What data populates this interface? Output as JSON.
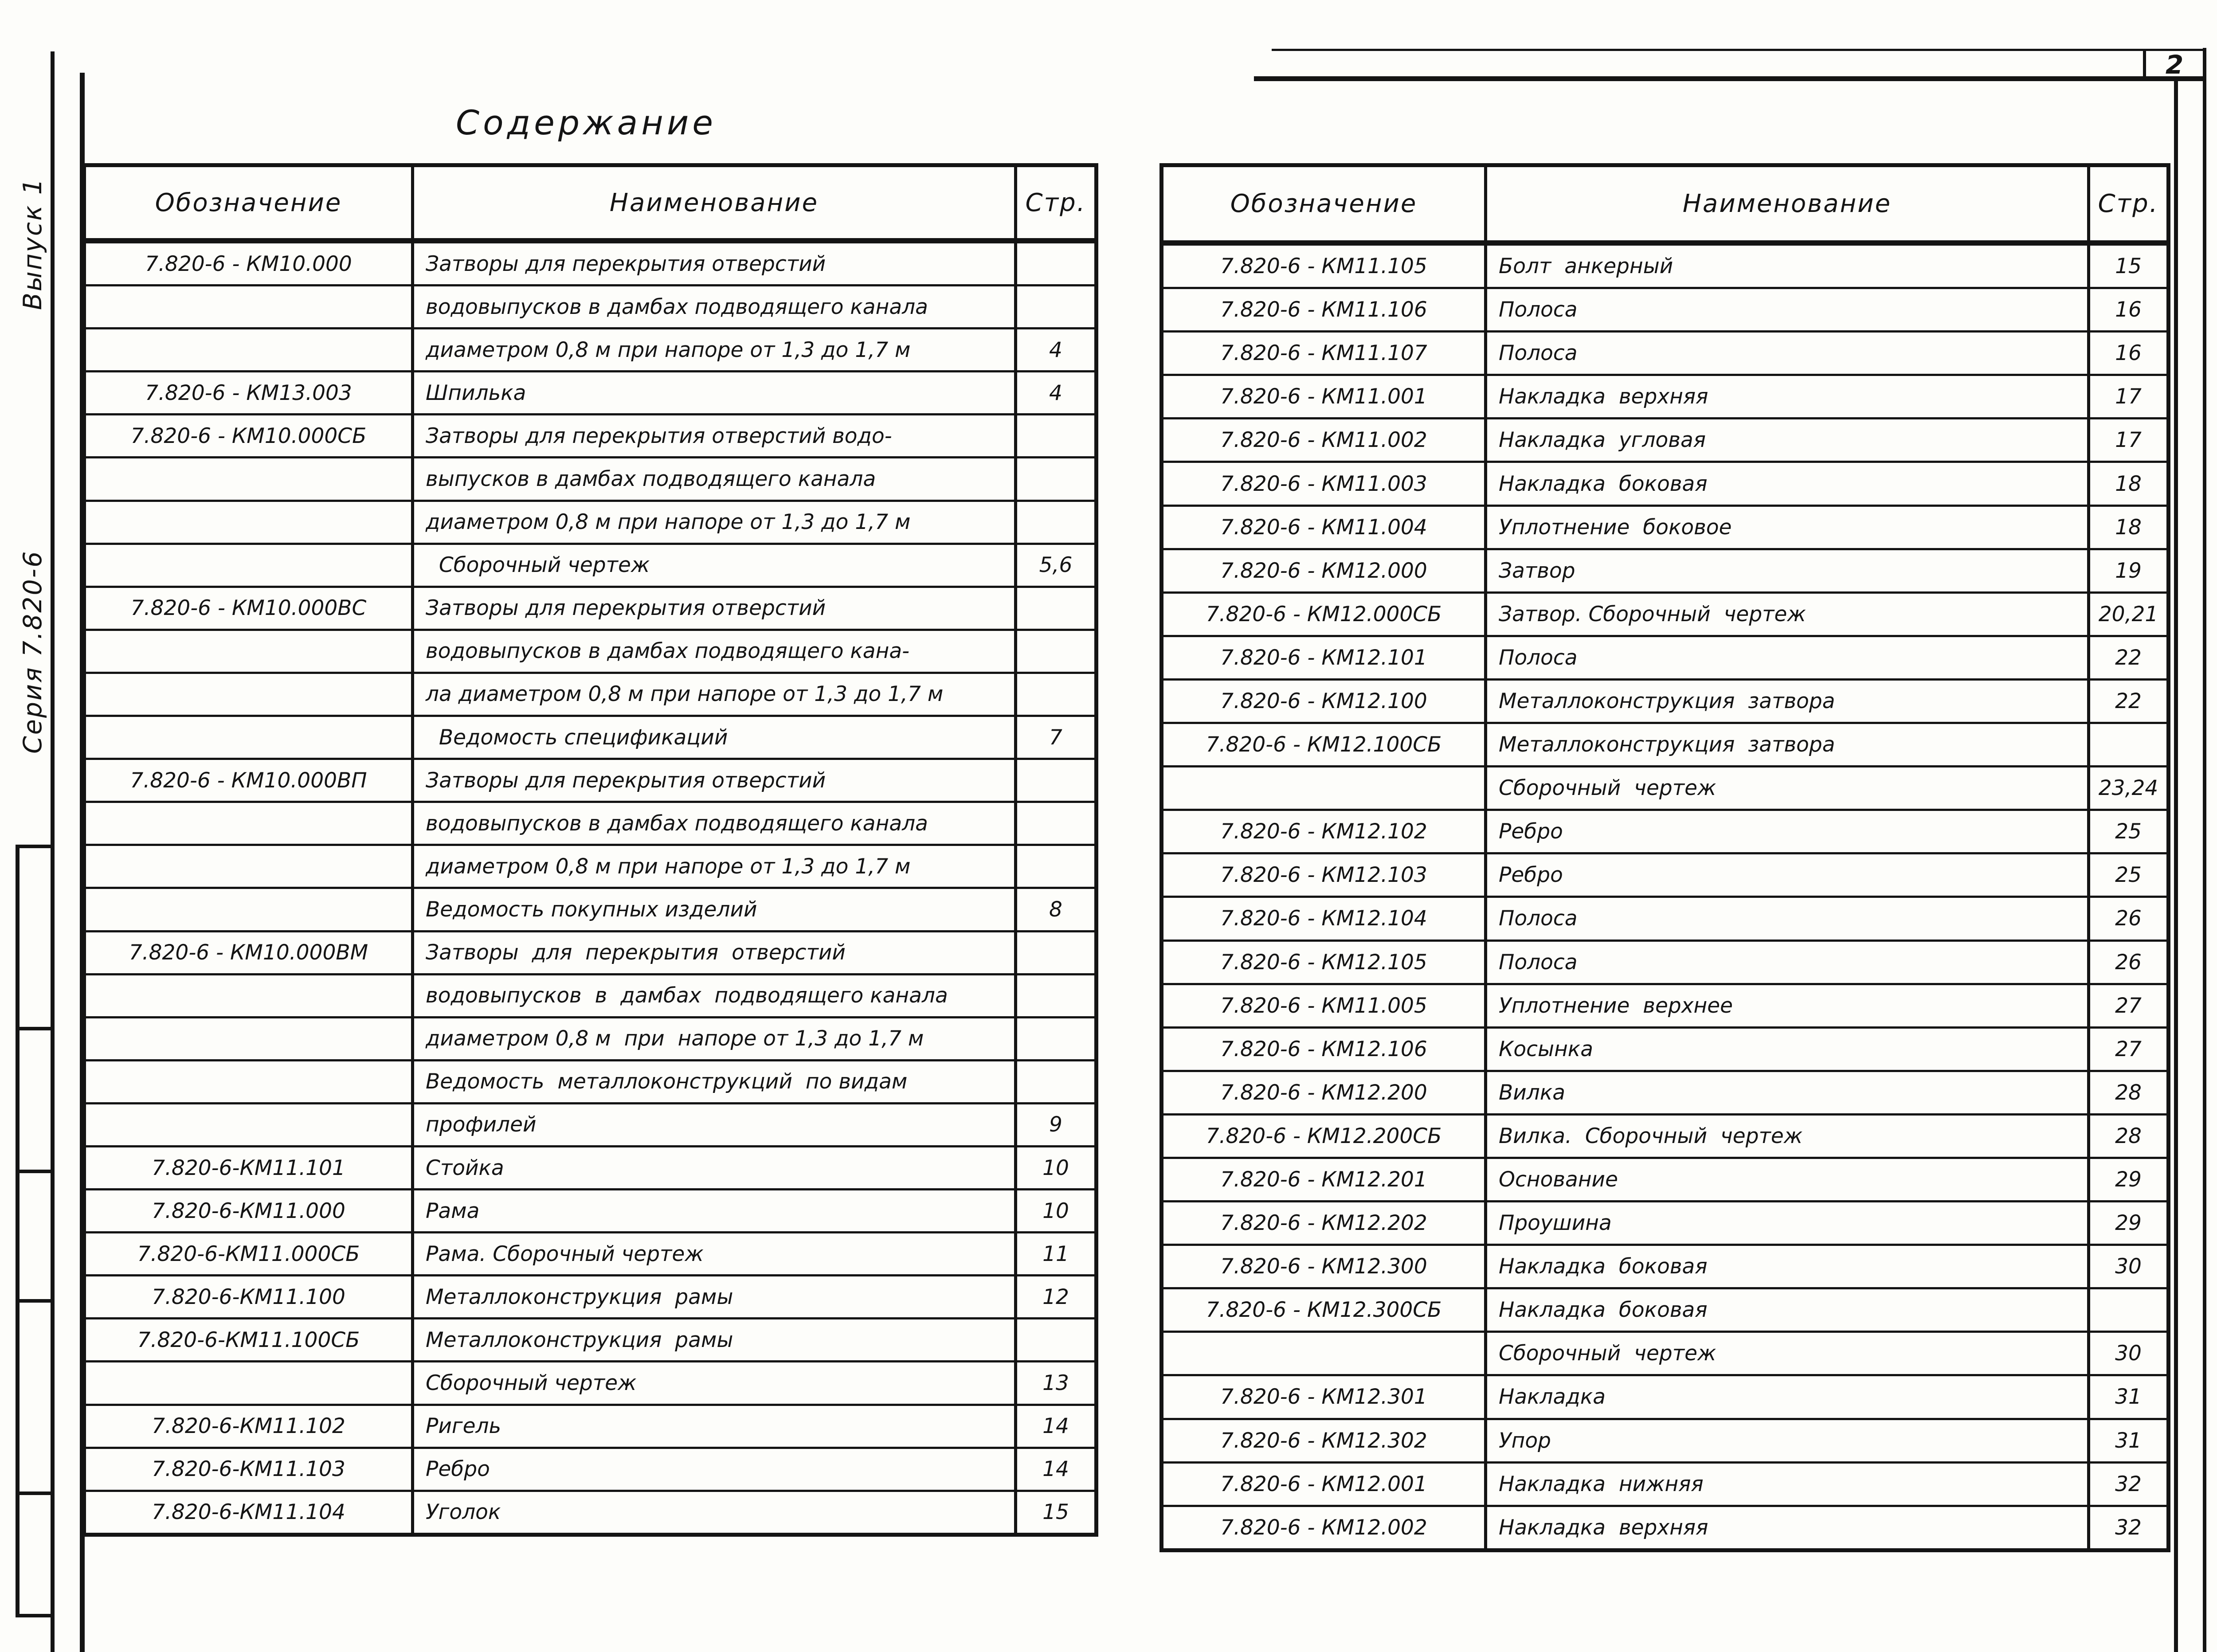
{
  "page_number": "2",
  "sidebar": {
    "series": "Серия 7.820-6",
    "issue": "Выпуск 1"
  },
  "title": "Содержание",
  "headers": {
    "designation": "Обозначение",
    "name": "Наименование",
    "page": "Стр."
  },
  "tables": [
    {
      "name": "left",
      "rows": [
        [
          "7.820-6 - КМ10.000",
          "Затворы для перекрытия отверстий",
          ""
        ],
        [
          "",
          "водовыпусков в дамбах подводящего канала",
          ""
        ],
        [
          "",
          "диаметром 0,8 м при напоре от 1,3 до 1,7 м",
          "4"
        ],
        [
          "7.820-6 - КМ13.003",
          "Шпилька",
          "4"
        ],
        [
          "7.820-6 - КМ10.000СБ",
          "Затворы для перекрытия отверстий водо-",
          ""
        ],
        [
          "",
          "выпусков в дамбах подводящего канала",
          ""
        ],
        [
          "",
          "диаметром 0,8 м при напоре от 1,3 до 1,7 м",
          ""
        ],
        [
          "",
          "  Сборочный чертеж",
          "5,6"
        ],
        [
          "7.820-6 - КМ10.000ВС",
          "Затворы для перекрытия отверстий",
          ""
        ],
        [
          "",
          "водовыпусков в дамбах подводящего кана-",
          ""
        ],
        [
          "",
          "ла диаметром 0,8 м при напоре от 1,3 до 1,7 м",
          ""
        ],
        [
          "",
          "  Ведомость спецификаций",
          "7"
        ],
        [
          "7.820-6 - КМ10.000ВП",
          "Затворы для перекрытия отверстий",
          ""
        ],
        [
          "",
          "водовыпусков в дамбах подводящего канала",
          ""
        ],
        [
          "",
          "диаметром 0,8 м при напоре от 1,3 до 1,7 м",
          ""
        ],
        [
          "",
          "Ведомость покупных изделий",
          "8"
        ],
        [
          "7.820-6 - КМ10.000ВМ",
          "Затворы  для  перекрытия  отверстий",
          ""
        ],
        [
          "",
          "водовыпусков  в  дамбах  подводящего канала",
          ""
        ],
        [
          "",
          "диаметром 0,8 м  при  напоре от 1,3 до 1,7 м",
          ""
        ],
        [
          "",
          "Ведомость  металлоконструкций  по видам",
          ""
        ],
        [
          "",
          "профилей",
          "9"
        ],
        [
          "7.820-6-КМ11.101",
          "Стойка",
          "10"
        ],
        [
          "7.820-6-КМ11.000",
          "Рама",
          "10"
        ],
        [
          "7.820-6-КМ11.000СБ",
          "Рама. Сборочный чертеж",
          "11"
        ],
        [
          "7.820-6-КМ11.100",
          "Металлоконструкция  рамы",
          "12"
        ],
        [
          "7.820-6-КМ11.100СБ",
          "Металлоконструкция  рамы",
          ""
        ],
        [
          "",
          "Сборочный чертеж",
          "13"
        ],
        [
          "7.820-6-КМ11.102",
          "Ригель",
          "14"
        ],
        [
          "7.820-6-КМ11.103",
          "Ребро",
          "14"
        ],
        [
          "7.820-6-КМ11.104",
          "Уголок",
          "15"
        ]
      ]
    },
    {
      "name": "right",
      "rows": [
        [
          "7.820-6 - КМ11.105",
          "Болт  анкерный",
          "15"
        ],
        [
          "7.820-6 - КМ11.106",
          "Полоса",
          "16"
        ],
        [
          "7.820-6 - КМ11.107",
          "Полоса",
          "16"
        ],
        [
          "7.820-6 - КМ11.001",
          "Накладка  верхняя",
          "17"
        ],
        [
          "7.820-6 - КМ11.002",
          "Накладка  угловая",
          "17"
        ],
        [
          "7.820-6 - КМ11.003",
          "Накладка  боковая",
          "18"
        ],
        [
          "7.820-6 - КМ11.004",
          "Уплотнение  боковое",
          "18"
        ],
        [
          "7.820-6 - КМ12.000",
          "Затвор",
          "19"
        ],
        [
          "7.820-6 - КМ12.000СБ",
          "Затвор. Сборочный  чертеж",
          "20,21"
        ],
        [
          "7.820-6 - КМ12.101",
          "Полоса",
          "22"
        ],
        [
          "7.820-6 - КМ12.100",
          "Металлоконструкция  затвора",
          "22"
        ],
        [
          "7.820-6 - КМ12.100СБ",
          "Металлоконструкция  затвора",
          ""
        ],
        [
          "",
          "Сборочный  чертеж",
          "23,24"
        ],
        [
          "7.820-6 - КМ12.102",
          "Ребро",
          "25"
        ],
        [
          "7.820-6 - КМ12.103",
          "Ребро",
          "25"
        ],
        [
          "7.820-6 - КМ12.104",
          "Полоса",
          "26"
        ],
        [
          "7.820-6 - КМ12.105",
          "Полоса",
          "26"
        ],
        [
          "7.820-6 - КМ11.005",
          "Уплотнение  верхнее",
          "27"
        ],
        [
          "7.820-6 - КМ12.106",
          "Косынка",
          "27"
        ],
        [
          "7.820-6 - КМ12.200",
          "Вилка",
          "28"
        ],
        [
          "7.820-6 - КМ12.200СБ",
          "Вилка.  Сборочный  чертеж",
          "28"
        ],
        [
          "7.820-6 - КМ12.201",
          "Основание",
          "29"
        ],
        [
          "7.820-6 - КМ12.202",
          "Проушина",
          "29"
        ],
        [
          "7.820-6 - КМ12.300",
          "Накладка  боковая",
          "30"
        ],
        [
          "7.820-6 - КМ12.300СБ",
          "Накладка  боковая",
          ""
        ],
        [
          "",
          "Сборочный  чертеж",
          "30"
        ],
        [
          "7.820-6 - КМ12.301",
          "Накладка",
          "31"
        ],
        [
          "7.820-6 - КМ12.302",
          "Упор",
          "31"
        ],
        [
          "7.820-6 - КМ12.001",
          "Накладка  нижняя",
          "32"
        ],
        [
          "7.820-6 - КМ12.002",
          "Накладка  верхняя",
          "32"
        ]
      ]
    }
  ]
}
